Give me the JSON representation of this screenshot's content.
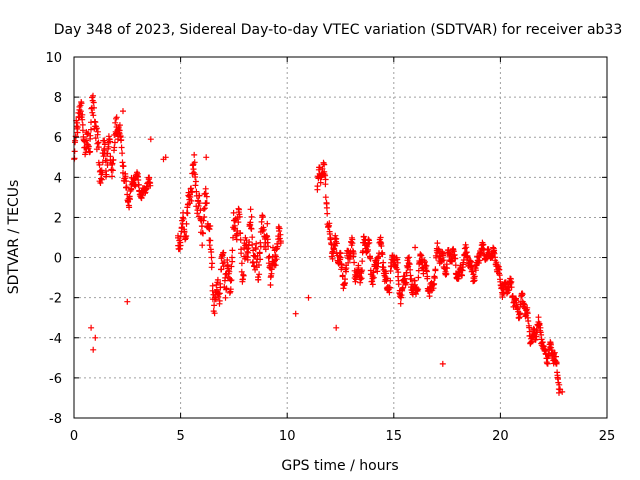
{
  "chart_data": {
    "type": "scatter",
    "title": "Day 348 of 2023, Sidereal Day-to-day VTEC variation (SDTVAR) for receiver ab33",
    "xlabel": "GPS time / hours",
    "ylabel": "SDTVAR / TECUs",
    "xlim": [
      0,
      25
    ],
    "ylim": [
      -8,
      10
    ],
    "xticks": [
      "0",
      "5",
      "10",
      "15",
      "20",
      "25"
    ],
    "yticks": [
      "-8",
      "-6",
      "-4",
      "-2",
      "0",
      "2",
      "4",
      "6",
      "8",
      "10"
    ],
    "grid": true,
    "marker": "+",
    "color": "#ff0000",
    "series": [
      {
        "name": "ab33",
        "trend": [
          [
            0.0,
            4.5
          ],
          [
            0.2,
            6.5
          ],
          [
            0.4,
            7.2
          ],
          [
            0.6,
            6.0
          ],
          [
            0.8,
            5.5
          ],
          [
            1.0,
            6.8
          ],
          [
            1.2,
            5.5
          ],
          [
            1.5,
            4.0
          ],
          [
            1.8,
            5.5
          ],
          [
            2.0,
            7.0
          ],
          [
            2.2,
            5.0
          ],
          [
            2.5,
            3.5
          ],
          [
            3.0,
            3.5
          ],
          [
            3.5,
            3.5
          ],
          [
            4.9,
            0.0
          ],
          [
            5.2,
            2.5
          ],
          [
            5.5,
            3.0
          ],
          [
            5.8,
            3.5
          ],
          [
            6.0,
            2.5
          ],
          [
            6.3,
            1.0
          ],
          [
            6.6,
            -1.0
          ],
          [
            6.9,
            -2.0
          ],
          [
            7.2,
            0.0
          ],
          [
            7.5,
            0.5
          ],
          [
            7.8,
            1.0
          ],
          [
            8.1,
            0.5
          ],
          [
            8.4,
            0.0
          ],
          [
            8.7,
            1.0
          ],
          [
            9.0,
            0.0
          ],
          [
            9.3,
            0.5
          ],
          [
            9.6,
            0.0
          ],
          [
            11.5,
            4.0
          ],
          [
            11.8,
            3.5
          ],
          [
            12.0,
            1.5
          ],
          [
            12.3,
            -0.3
          ],
          [
            12.6,
            -0.5
          ],
          [
            12.9,
            0.0
          ],
          [
            13.2,
            -0.5
          ],
          [
            13.5,
            -0.3
          ],
          [
            13.8,
            0.3
          ],
          [
            14.1,
            -0.5
          ],
          [
            14.4,
            0.0
          ],
          [
            14.7,
            -1.0
          ],
          [
            15.0,
            -0.5
          ],
          [
            15.3,
            -1.2
          ],
          [
            15.6,
            -0.8
          ],
          [
            15.9,
            -1.5
          ],
          [
            16.2,
            -0.5
          ],
          [
            16.5,
            -1.0
          ],
          [
            16.8,
            -1.2
          ],
          [
            17.1,
            -0.3
          ],
          [
            17.4,
            0.2
          ],
          [
            17.7,
            -0.3
          ],
          [
            18.0,
            -0.5
          ],
          [
            18.3,
            -0.2
          ],
          [
            18.6,
            -0.5
          ],
          [
            18.9,
            -0.3
          ],
          [
            19.2,
            0.2
          ],
          [
            19.5,
            0.5
          ],
          [
            19.8,
            -0.5
          ],
          [
            20.1,
            -1.2
          ],
          [
            20.4,
            -1.8
          ],
          [
            20.7,
            -2.0
          ],
          [
            21.0,
            -2.5
          ],
          [
            21.3,
            -3.2
          ],
          [
            21.6,
            -3.8
          ],
          [
            21.9,
            -4.0
          ],
          [
            22.2,
            -4.5
          ],
          [
            22.5,
            -5.3
          ],
          [
            22.8,
            -6.0
          ]
        ],
        "spread": [
          [
            0.0,
            1.2
          ],
          [
            1.0,
            2.0
          ],
          [
            2.5,
            1.0
          ],
          [
            3.5,
            0.5
          ],
          [
            4.9,
            1.2
          ],
          [
            6.0,
            2.0
          ],
          [
            8.0,
            2.2
          ],
          [
            9.6,
            1.5
          ],
          [
            11.5,
            1.0
          ],
          [
            12.5,
            1.2
          ],
          [
            15.0,
            1.0
          ],
          [
            17.0,
            1.0
          ],
          [
            19.5,
            0.6
          ],
          [
            21.0,
            0.8
          ],
          [
            22.8,
            0.8
          ]
        ],
        "gaps": [
          [
            3.6,
            4.85
          ],
          [
            9.7,
            11.4
          ]
        ],
        "point_count": 1500,
        "outliers": [
          [
            3.6,
            5.9
          ],
          [
            4.2,
            4.9
          ],
          [
            4.3,
            5.0
          ],
          [
            10.4,
            -2.8
          ],
          [
            11.0,
            -2.0
          ],
          [
            12.3,
            -3.5
          ],
          [
            2.5,
            -2.2
          ],
          [
            0.9,
            -4.6
          ],
          [
            1.0,
            -4.0
          ],
          [
            17.3,
            -5.3
          ],
          [
            6.2,
            5.0
          ],
          [
            16.0,
            0.5
          ],
          [
            22.9,
            -6.7
          ],
          [
            0.8,
            -3.5
          ],
          [
            2.3,
            7.3
          ]
        ]
      }
    ]
  }
}
